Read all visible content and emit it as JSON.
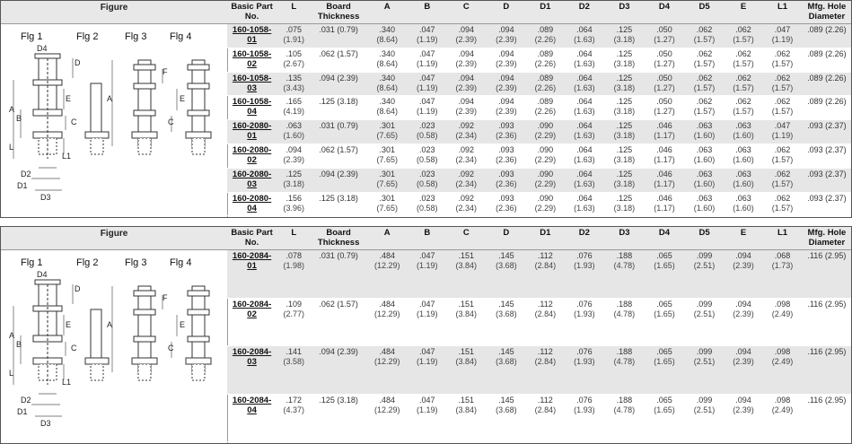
{
  "figures": {
    "header": "Figure",
    "labels": [
      "Flg 1",
      "Flg 2",
      "Flg 3",
      "Flg 4"
    ],
    "dims": {
      "D4": "D4",
      "D": "D",
      "F": "F",
      "A": "A",
      "B": "B",
      "E": "E",
      "C": "C",
      "L": "L",
      "L1": "L1",
      "D2": "D2",
      "D1": "D1",
      "D3": "D3"
    }
  },
  "table": {
    "headers": [
      "Basic Part No.",
      "L",
      "Board Thickness",
      "A",
      "B",
      "C",
      "D",
      "D1",
      "D2",
      "D3",
      "D4",
      "D5",
      "E",
      "L1",
      "Mfg. Hole Diameter"
    ]
  },
  "block1_rows": [
    {
      "part": "160-1058-01",
      "L": ".075",
      "L_mm": "(1.91)",
      "board": ".031 (0.79)",
      "A": ".340",
      "A_mm": "(8.64)",
      "B": ".047",
      "B_mm": "(1.19)",
      "C": ".094",
      "C_mm": "(2.39)",
      "D": ".094",
      "D_mm": "(2.39)",
      "D1": ".089",
      "D1_mm": "(2.26)",
      "D2": ".064",
      "D2_mm": "(1.63)",
      "D3": ".125",
      "D3_mm": "(3.18)",
      "D4": ".050",
      "D4_mm": "(1.27)",
      "D5": ".062",
      "D5_mm": "(1.57)",
      "E": ".062",
      "E_mm": "(1.57)",
      "L1": ".047",
      "L1_mm": "(1.19)",
      "hole": ".089 (2.26)"
    },
    {
      "part": "160-1058-02",
      "L": ".105",
      "L_mm": "(2.67)",
      "board": ".062 (1.57)",
      "A": ".340",
      "A_mm": "(8.64)",
      "B": ".047",
      "B_mm": "(1.19)",
      "C": ".094",
      "C_mm": "(2.39)",
      "D": ".094",
      "D_mm": "(2.39)",
      "D1": ".089",
      "D1_mm": "(2.26)",
      "D2": ".064",
      "D2_mm": "(1.63)",
      "D3": ".125",
      "D3_mm": "(3.18)",
      "D4": ".050",
      "D4_mm": "(1.27)",
      "D5": ".062",
      "D5_mm": "(1.57)",
      "E": ".062",
      "E_mm": "(1.57)",
      "L1": ".062",
      "L1_mm": "(1.57)",
      "hole": ".089 (2.26)"
    },
    {
      "part": "160-1058-03",
      "L": ".135",
      "L_mm": "(3.43)",
      "board": ".094 (2.39)",
      "A": ".340",
      "A_mm": "(8.64)",
      "B": ".047",
      "B_mm": "(1.19)",
      "C": ".094",
      "C_mm": "(2.39)",
      "D": ".094",
      "D_mm": "(2.39)",
      "D1": ".089",
      "D1_mm": "(2.26)",
      "D2": ".064",
      "D2_mm": "(1.63)",
      "D3": ".125",
      "D3_mm": "(3.18)",
      "D4": ".050",
      "D4_mm": "(1.27)",
      "D5": ".062",
      "D5_mm": "(1.57)",
      "E": ".062",
      "E_mm": "(1.57)",
      "L1": ".062",
      "L1_mm": "(1.57)",
      "hole": ".089 (2.26)"
    },
    {
      "part": "160-1058-04",
      "L": ".165",
      "L_mm": "(4.19)",
      "board": ".125 (3.18)",
      "A": ".340",
      "A_mm": "(8.64)",
      "B": ".047",
      "B_mm": "(1.19)",
      "C": ".094",
      "C_mm": "(2.39)",
      "D": ".094",
      "D_mm": "(2.39)",
      "D1": ".089",
      "D1_mm": "(2.26)",
      "D2": ".064",
      "D2_mm": "(1.63)",
      "D3": ".125",
      "D3_mm": "(3.18)",
      "D4": ".050",
      "D4_mm": "(1.27)",
      "D5": ".062",
      "D5_mm": "(1.57)",
      "E": ".062",
      "E_mm": "(1.57)",
      "L1": ".062",
      "L1_mm": "(1.57)",
      "hole": ".089 (2.26)"
    },
    {
      "part": "160-2080-01",
      "L": ".063",
      "L_mm": "(1.60)",
      "board": ".031 (0.79)",
      "A": ".301",
      "A_mm": "(7.65)",
      "B": ".023",
      "B_mm": "(0.58)",
      "C": ".092",
      "C_mm": "(2.34)",
      "D": ".093",
      "D_mm": "(2.36)",
      "D1": ".090",
      "D1_mm": "(2.29)",
      "D2": ".064",
      "D2_mm": "(1.63)",
      "D3": ".125",
      "D3_mm": "(3.18)",
      "D4": ".046",
      "D4_mm": "(1.17)",
      "D5": ".063",
      "D5_mm": "(1.60)",
      "E": ".063",
      "E_mm": "(1.60)",
      "L1": ".047",
      "L1_mm": "(1.19)",
      "hole": ".093 (2.37)"
    },
    {
      "part": "160-2080-02",
      "L": ".094",
      "L_mm": "(2.39)",
      "board": ".062 (1.57)",
      "A": ".301",
      "A_mm": "(7.65)",
      "B": ".023",
      "B_mm": "(0.58)",
      "C": ".092",
      "C_mm": "(2.34)",
      "D": ".093",
      "D_mm": "(2.36)",
      "D1": ".090",
      "D1_mm": "(2.29)",
      "D2": ".064",
      "D2_mm": "(1.63)",
      "D3": ".125",
      "D3_mm": "(3.18)",
      "D4": ".046",
      "D4_mm": "(1.17)",
      "D5": ".063",
      "D5_mm": "(1.60)",
      "E": ".063",
      "E_mm": "(1.60)",
      "L1": ".062",
      "L1_mm": "(1.57)",
      "hole": ".093 (2.37)"
    },
    {
      "part": "160-2080-03",
      "L": ".125",
      "L_mm": "(3.18)",
      "board": ".094 (2.39)",
      "A": ".301",
      "A_mm": "(7.65)",
      "B": ".023",
      "B_mm": "(0.58)",
      "C": ".092",
      "C_mm": "(2.34)",
      "D": ".093",
      "D_mm": "(2.36)",
      "D1": ".090",
      "D1_mm": "(2.29)",
      "D2": ".064",
      "D2_mm": "(1.63)",
      "D3": ".125",
      "D3_mm": "(3.18)",
      "D4": ".046",
      "D4_mm": "(1.17)",
      "D5": ".063",
      "D5_mm": "(1.60)",
      "E": ".063",
      "E_mm": "(1.60)",
      "L1": ".062",
      "L1_mm": "(1.57)",
      "hole": ".093 (2.37)"
    },
    {
      "part": "160-2080-04",
      "L": ".156",
      "L_mm": "(3.96)",
      "board": ".125 (3.18)",
      "A": ".301",
      "A_mm": "(7.65)",
      "B": ".023",
      "B_mm": "(0.58)",
      "C": ".092",
      "C_mm": "(2.34)",
      "D": ".093",
      "D_mm": "(2.36)",
      "D1": ".090",
      "D1_mm": "(2.29)",
      "D2": ".064",
      "D2_mm": "(1.63)",
      "D3": ".125",
      "D3_mm": "(3.18)",
      "D4": ".046",
      "D4_mm": "(1.17)",
      "D5": ".063",
      "D5_mm": "(1.60)",
      "E": ".063",
      "E_mm": "(1.60)",
      "L1": ".062",
      "L1_mm": "(1.57)",
      "hole": ".093 (2.37)"
    }
  ],
  "block2_rows": [
    {
      "part": "160-2084-01",
      "L": ".078",
      "L_mm": "(1.98)",
      "board": ".031 (0.79)",
      "A": ".484",
      "A_mm": "(12.29)",
      "B": ".047",
      "B_mm": "(1.19)",
      "C": ".151",
      "C_mm": "(3.84)",
      "D": ".145",
      "D_mm": "(3.68)",
      "D1": ".112",
      "D1_mm": "(2.84)",
      "D2": ".076",
      "D2_mm": "(1.93)",
      "D3": ".188",
      "D3_mm": "(4.78)",
      "D4": ".065",
      "D4_mm": "(1.65)",
      "D5": ".099",
      "D5_mm": "(2.51)",
      "E": ".094",
      "E_mm": "(2.39)",
      "L1": ".068",
      "L1_mm": "(1.73)",
      "hole": ".116 (2.95)"
    },
    {
      "part": "160-2084-02",
      "L": ".109",
      "L_mm": "(2.77)",
      "board": ".062 (1.57)",
      "A": ".484",
      "A_mm": "(12.29)",
      "B": ".047",
      "B_mm": "(1.19)",
      "C": ".151",
      "C_mm": "(3.84)",
      "D": ".145",
      "D_mm": "(3.68)",
      "D1": ".112",
      "D1_mm": "(2.84)",
      "D2": ".076",
      "D2_mm": "(1.93)",
      "D3": ".188",
      "D3_mm": "(4.78)",
      "D4": ".065",
      "D4_mm": "(1.65)",
      "D5": ".099",
      "D5_mm": "(2.51)",
      "E": ".094",
      "E_mm": "(2.39)",
      "L1": ".098",
      "L1_mm": "(2.49)",
      "hole": ".116 (2.95)"
    },
    {
      "part": "160-2084-03",
      "L": ".141",
      "L_mm": "(3.58)",
      "board": ".094 (2.39)",
      "A": ".484",
      "A_mm": "(12.29)",
      "B": ".047",
      "B_mm": "(1.19)",
      "C": ".151",
      "C_mm": "(3.84)",
      "D": ".145",
      "D_mm": "(3.68)",
      "D1": ".112",
      "D1_mm": "(2.84)",
      "D2": ".076",
      "D2_mm": "(1.93)",
      "D3": ".188",
      "D3_mm": "(4.78)",
      "D4": ".065",
      "D4_mm": "(1.65)",
      "D5": ".099",
      "D5_mm": "(2.51)",
      "E": ".094",
      "E_mm": "(2.39)",
      "L1": ".098",
      "L1_mm": "(2.49)",
      "hole": ".116 (2.95)"
    },
    {
      "part": "160-2084-04",
      "L": ".172",
      "L_mm": "(4.37)",
      "board": ".125 (3.18)",
      "A": ".484",
      "A_mm": "(12.29)",
      "B": ".047",
      "B_mm": "(1.19)",
      "C": ".151",
      "C_mm": "(3.84)",
      "D": ".145",
      "D_mm": "(3.68)",
      "D1": ".112",
      "D1_mm": "(2.84)",
      "D2": ".076",
      "D2_mm": "(1.93)",
      "D3": ".188",
      "D3_mm": "(4.78)",
      "D4": ".065",
      "D4_mm": "(1.65)",
      "D5": ".099",
      "D5_mm": "(2.51)",
      "E": ".094",
      "E_mm": "(2.39)",
      "L1": ".098",
      "L1_mm": "(2.49)",
      "hole": ".116 (2.95)"
    }
  ]
}
